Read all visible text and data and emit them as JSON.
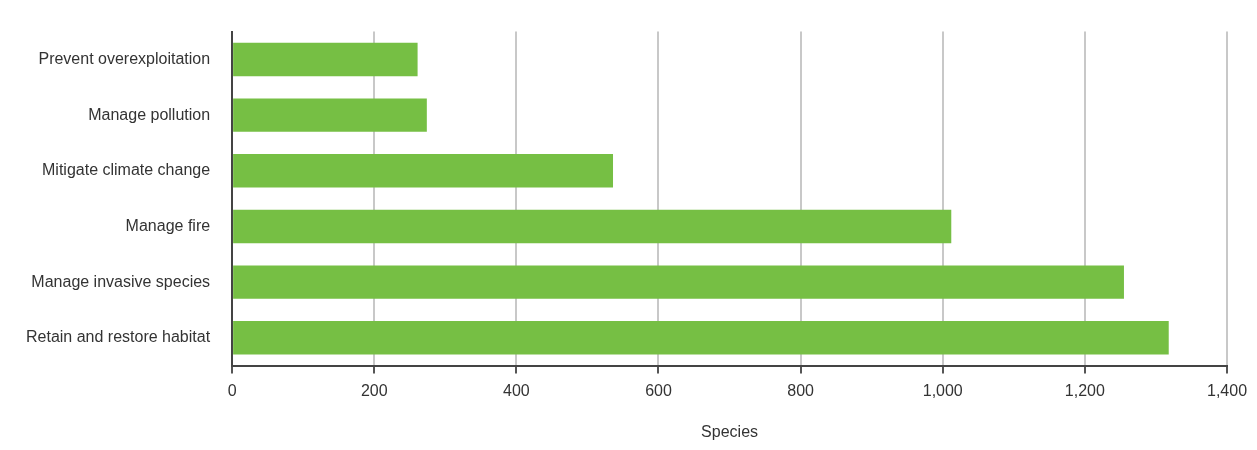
{
  "chart_data": {
    "type": "bar",
    "orientation": "horizontal",
    "xlabel": "Species",
    "categories": [
      "Prevent overexploitation",
      "Manage pollution",
      "Mitigate climate change",
      "Manage fire",
      "Manage invasive species",
      "Retain and restore habitat"
    ],
    "values": [
      261,
      274,
      536,
      1012,
      1255,
      1318
    ],
    "color": "#76bf44",
    "xlim": [
      0,
      1400
    ],
    "xticks": [
      0,
      200,
      400,
      600,
      800,
      {
        "value": 1000,
        "label": "1,000"
      },
      {
        "value": 1200,
        "label": "1,200"
      },
      {
        "value": 1400,
        "label": "1,400"
      }
    ],
    "grid": "x",
    "legend": false
  }
}
